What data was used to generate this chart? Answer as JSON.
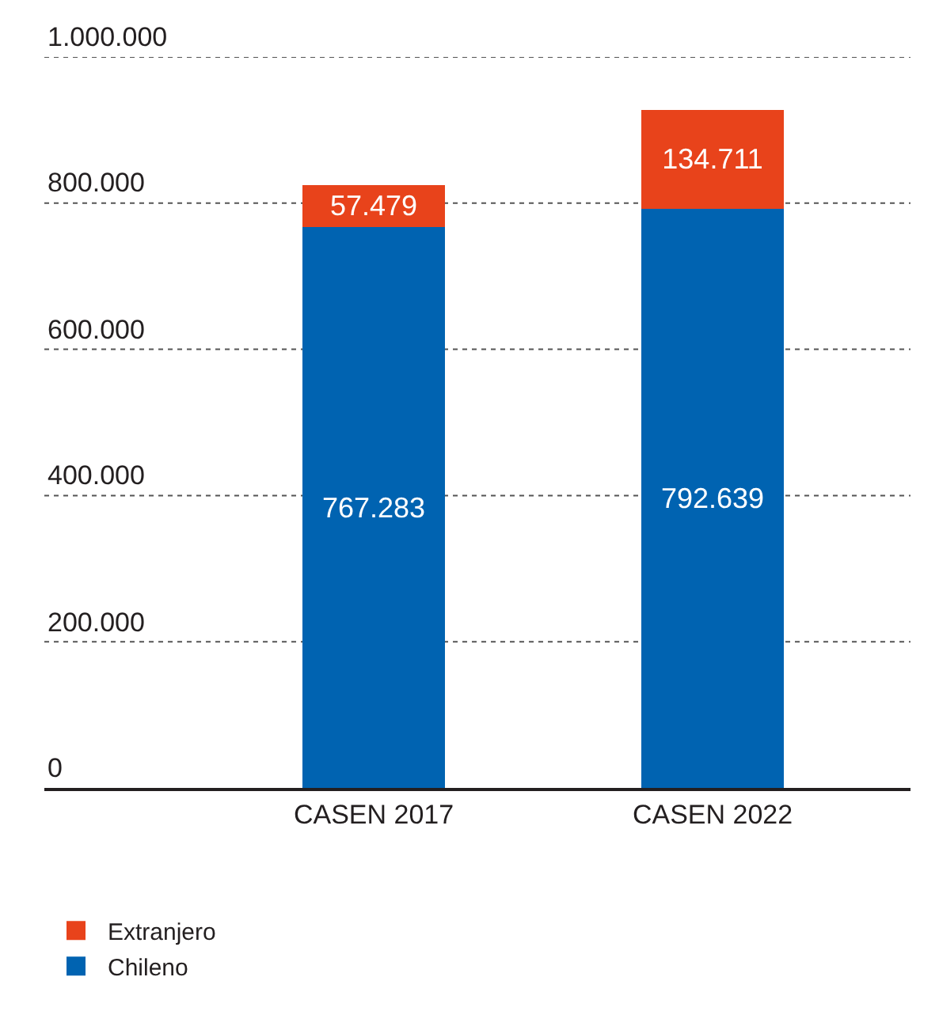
{
  "chart_data": {
    "type": "bar",
    "stacked": true,
    "categories": [
      "CASEN 2017",
      "CASEN 2022"
    ],
    "series": [
      {
        "name": "Chileno",
        "color": "#0063b1",
        "values": [
          767283,
          792639
        ],
        "value_labels": [
          "767.283",
          "792.639"
        ]
      },
      {
        "name": "Extranjero",
        "color": "#e8431b",
        "values": [
          57479,
          134711
        ],
        "value_labels": [
          "57.479",
          "134.711"
        ]
      }
    ],
    "ylim": [
      0,
      1000000
    ],
    "yticks": [
      {
        "value": 0,
        "label": "0"
      },
      {
        "value": 200000,
        "label": "200.000"
      },
      {
        "value": 400000,
        "label": "400.000"
      },
      {
        "value": 600000,
        "label": "600.000"
      },
      {
        "value": 800000,
        "label": "800.000"
      },
      {
        "value": 1000000,
        "label": "1.000.000"
      }
    ],
    "grid": "y",
    "legend": "bottom left"
  }
}
